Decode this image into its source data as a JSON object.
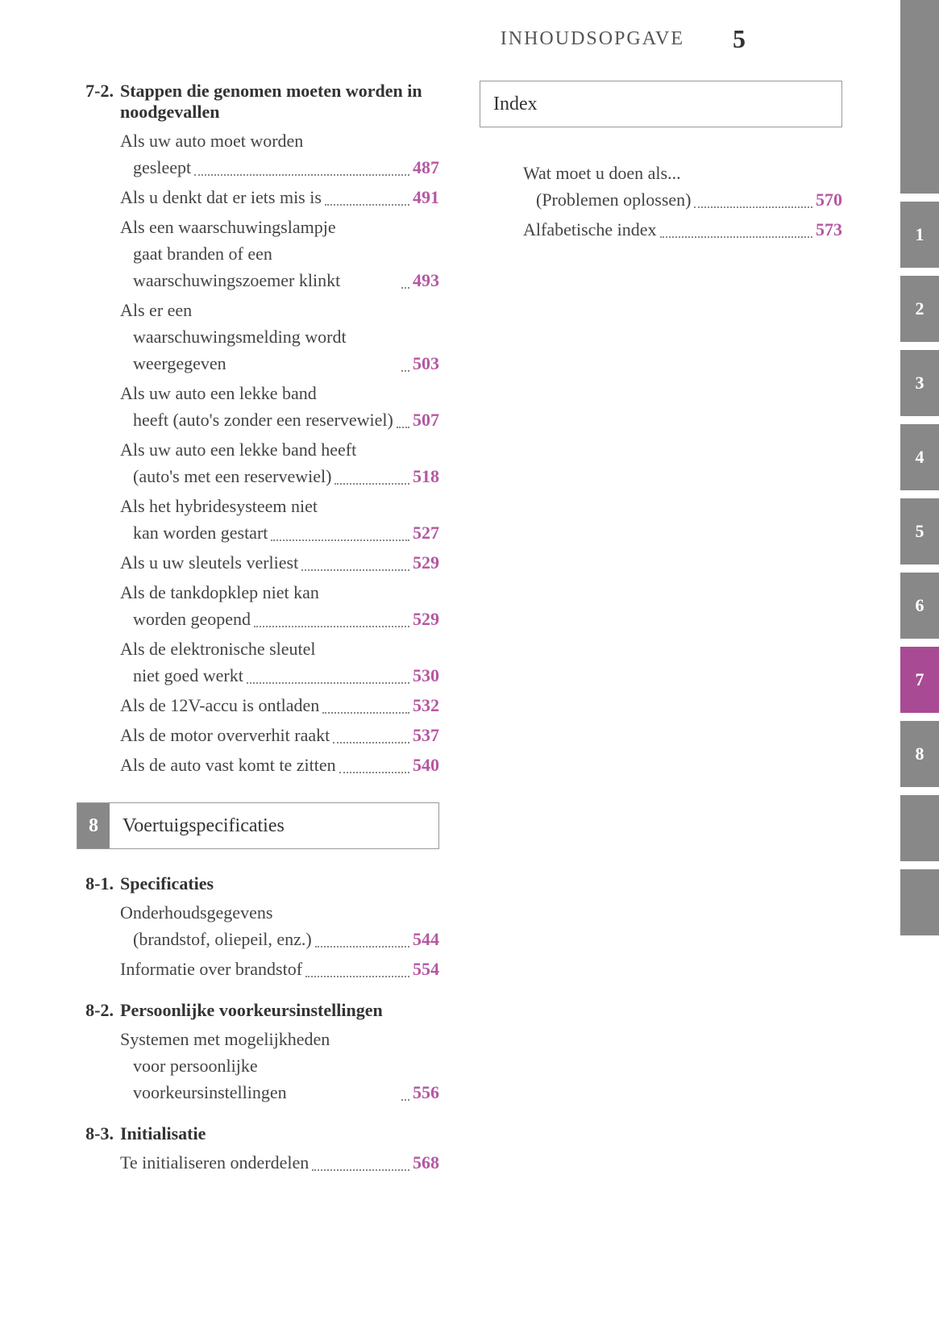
{
  "header": {
    "title": "INHOUDSOPGAVE",
    "page_number": "5"
  },
  "accent_color": "#b657a2",
  "tab_gray": "#888888",
  "left_column": {
    "section_7_2": {
      "number": "7-2.",
      "title": "Stappen die genomen moeten worden in noodgevallen",
      "items": [
        {
          "text": "Als uw auto moet worden",
          "cont": "gesleept",
          "page": "487"
        },
        {
          "text": "Als u denkt dat er iets mis is",
          "page": "491"
        },
        {
          "text": "Als een waarschuwingslampje",
          "cont": "gaat branden of een waarschuwingszoemer klinkt",
          "page": "493"
        },
        {
          "text": "Als er een",
          "cont": "waarschuwingsmelding wordt weergegeven",
          "page": "503"
        },
        {
          "text": "Als uw auto een lekke band",
          "cont": "heeft (auto's zonder een reservewiel)",
          "page": "507"
        },
        {
          "text": "Als uw auto een lekke band heeft",
          "cont": "(auto's met een reservewiel)",
          "page": "518"
        },
        {
          "text": "Als het hybridesysteem niet",
          "cont": "kan worden gestart",
          "page": "527"
        },
        {
          "text": "Als u uw sleutels verliest",
          "page": "529"
        },
        {
          "text": "Als de tankdopklep niet kan",
          "cont": "worden geopend",
          "page": "529"
        },
        {
          "text": "Als de elektronische sleutel",
          "cont": "niet goed werkt",
          "page": "530"
        },
        {
          "text": "Als de 12V-accu is ontladen",
          "page": "532"
        },
        {
          "text": "Als de motor oververhit raakt",
          "page": "537"
        },
        {
          "text": "Als de auto vast komt te zitten",
          "page": "540"
        }
      ]
    },
    "chapter_8": {
      "number": "8",
      "title": "Voertuigspecificaties"
    },
    "section_8_1": {
      "number": "8-1.",
      "title": "Specificaties",
      "items": [
        {
          "text": "Onderhoudsgegevens",
          "cont": "(brandstof, oliepeil, enz.)",
          "page": "544"
        },
        {
          "text": "Informatie over brandstof",
          "page": "554"
        }
      ]
    },
    "section_8_2": {
      "number": "8-2.",
      "title": "Persoonlijke voorkeursinstellingen",
      "items": [
        {
          "text": "Systemen met mogelijkheden",
          "cont": "voor persoonlijke voorkeursinstellingen",
          "page": "556"
        }
      ]
    },
    "section_8_3": {
      "number": "8-3.",
      "title": "Initialisatie",
      "items": [
        {
          "text": "Te initialiseren onderdelen",
          "page": "568"
        }
      ]
    }
  },
  "right_column": {
    "index_title": "Index",
    "items": [
      {
        "text": "Wat moet u doen als...",
        "cont": "(Problemen oplossen)",
        "page": "570"
      },
      {
        "text": "Alfabetische index",
        "page": "573"
      }
    ]
  },
  "side_tabs": {
    "tabs": [
      {
        "label": "1",
        "active": false
      },
      {
        "label": "2",
        "active": false
      },
      {
        "label": "3",
        "active": false
      },
      {
        "label": "4",
        "active": false
      },
      {
        "label": "5",
        "active": false
      },
      {
        "label": "6",
        "active": false
      },
      {
        "label": "7",
        "active": true
      },
      {
        "label": "8",
        "active": false
      }
    ]
  }
}
